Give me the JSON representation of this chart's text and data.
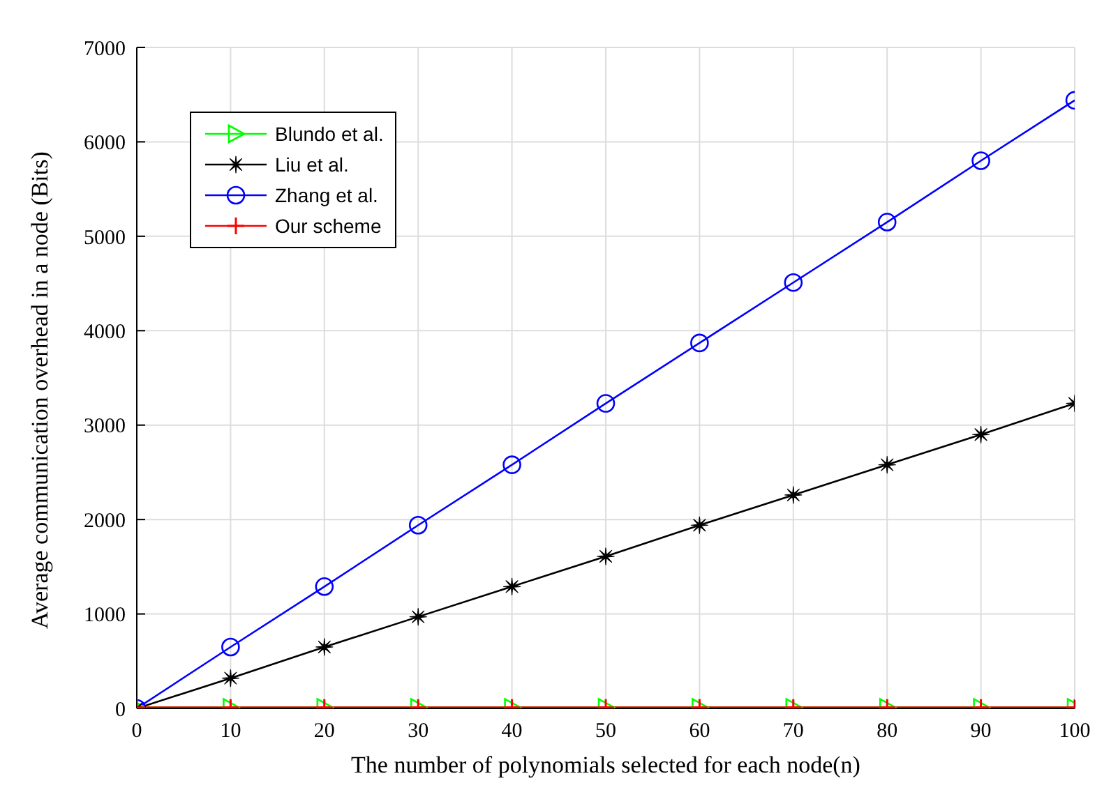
{
  "chart_data": {
    "type": "line",
    "xlabel": "The number of polynomials selected for each node(n)",
    "ylabel": "Average communication overhead in a node (Bits)",
    "x": [
      0,
      10,
      20,
      30,
      40,
      50,
      60,
      70,
      80,
      90,
      100
    ],
    "xlim": [
      0,
      100
    ],
    "xticks": [
      0,
      10,
      20,
      30,
      40,
      50,
      60,
      70,
      80,
      90,
      100
    ],
    "ylim": [
      0,
      7000
    ],
    "yticks": [
      0,
      1000,
      2000,
      3000,
      4000,
      5000,
      6000,
      7000
    ],
    "grid": true,
    "legend": "top left",
    "line_style": "solid",
    "series": [
      {
        "name": "Blundo et al.",
        "color": "#00ff00",
        "marker": "triangle",
        "values": [
          10,
          10,
          10,
          10,
          10,
          10,
          10,
          10,
          10,
          10,
          10
        ]
      },
      {
        "name": "Liu et al.",
        "color": "#000000",
        "marker": "star",
        "values": [
          0,
          320,
          650,
          970,
          1290,
          1610,
          1940,
          2260,
          2580,
          2900,
          3230
        ]
      },
      {
        "name": "Zhang et al.",
        "color": "#0000ff",
        "marker": "circle",
        "values": [
          0,
          650,
          1290,
          1940,
          2580,
          3230,
          3870,
          4510,
          5150,
          5800,
          6440
        ]
      },
      {
        "name": "Our scheme",
        "color": "#ff0000",
        "marker": "cross",
        "values": [
          10,
          10,
          10,
          10,
          10,
          10,
          10,
          10,
          10,
          10,
          10
        ]
      }
    ]
  }
}
